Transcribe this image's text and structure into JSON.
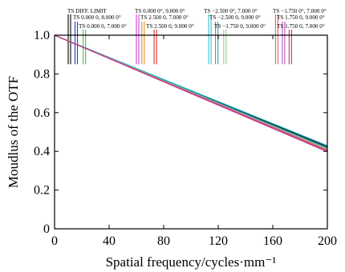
{
  "chart_data": {
    "type": "line",
    "xlabel": "Spatial frequency/cycles·mm⁻¹",
    "ylabel": "Moudlus of the OTF",
    "xlim": [
      0,
      200
    ],
    "ylim": [
      0,
      1.0
    ],
    "xticks": [
      0,
      40,
      80,
      120,
      160,
      200
    ],
    "yticks": [
      0,
      0.2,
      0.4,
      0.6,
      0.8,
      1.0
    ],
    "xtick_labels": [
      "0",
      "40",
      "80",
      "120",
      "160",
      "200"
    ],
    "ytick_labels": [
      "0",
      "0.2",
      "0.4",
      "0.6",
      "0.8",
      "1.0"
    ],
    "grid": false,
    "legend_position": "top",
    "series": [
      {
        "name": "TS DIFF. LIMIT",
        "color": "#000000",
        "x": [
          0,
          200
        ],
        "y": [
          1.0,
          0.425
        ],
        "marker_x": 10
      },
      {
        "name": "TS 0.000 0, 8.000 0°",
        "color": "#1f3fbf",
        "x": [
          0,
          200
        ],
        "y": [
          1.0,
          0.42
        ],
        "marker_x": 15
      },
      {
        "name": "TS 0.000 0, 7.000 0°",
        "color": "#3fbf3f",
        "x": [
          0,
          200
        ],
        "y": [
          1.0,
          0.415
        ],
        "marker_x": 21
      },
      {
        "name": "TS 0.000 0°, 9.000 0°",
        "color": "#d040d0",
        "x": [
          0,
          200
        ],
        "y": [
          1.0,
          0.41
        ],
        "marker_x": 60
      },
      {
        "name": "TS 2.500 0, 7.000 0°",
        "color": "#e09020",
        "x": [
          0,
          200
        ],
        "y": [
          1.0,
          0.405
        ],
        "marker_x": 64
      },
      {
        "name": "TS 2.500 0, 9.000 0°",
        "color": "#e03030",
        "x": [
          0,
          200
        ],
        "y": [
          1.0,
          0.4
        ],
        "marker_x": 73
      },
      {
        "name": "TS −2.500 0°, 7.000 0°",
        "color": "#30c0d0",
        "x": [
          0,
          200
        ],
        "y": [
          1.0,
          0.43
        ],
        "marker_x": 113
      },
      {
        "name": "TS −2.500 0, 9.000 0°",
        "color": "#30a0a0",
        "x": [
          0,
          200
        ],
        "y": [
          1.0,
          0.418
        ],
        "marker_x": 118
      },
      {
        "name": "TS −1.750 0, 9.000 0°",
        "color": "#90d090",
        "x": [
          0,
          200
        ],
        "y": [
          1.0,
          0.412
        ],
        "marker_x": 124
      },
      {
        "name": "TS −1.750 0°, 7.000 0°",
        "color": "#e06060",
        "x": [
          0,
          200
        ],
        "y": [
          1.0,
          0.408
        ],
        "marker_x": 162
      },
      {
        "name": "TS 1.750 0, 9.000 0°",
        "color": "#c050c0",
        "x": [
          0,
          200
        ],
        "y": [
          1.0,
          0.402
        ],
        "marker_x": 167
      },
      {
        "name": "TS 1.750 0, 7.000 0°",
        "color": "#c03080",
        "x": [
          0,
          200
        ],
        "y": [
          1.0,
          0.398
        ],
        "marker_x": 172
      }
    ]
  }
}
